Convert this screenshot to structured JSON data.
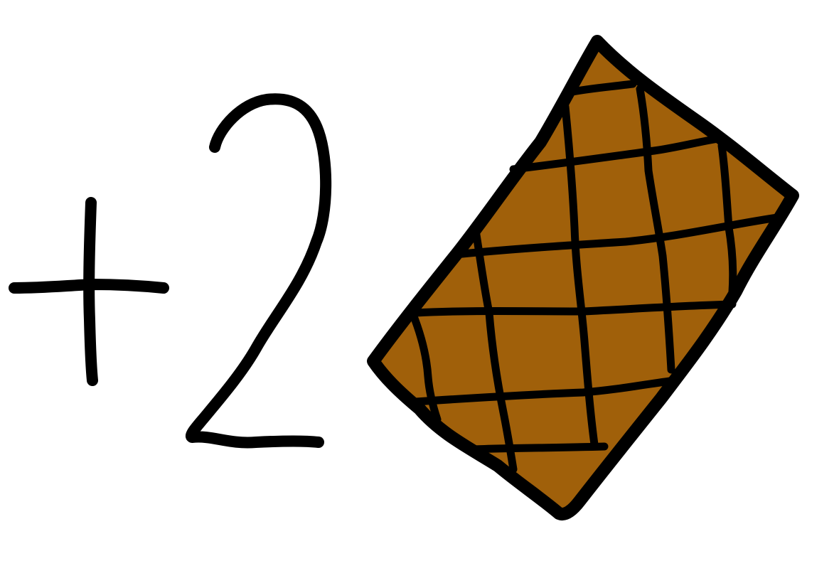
{
  "sign_text": "+",
  "amount_text": "2",
  "item": {
    "icon": "wafer-cookie-icon"
  },
  "colors": {
    "background": "#ffffff",
    "ink": "#000000",
    "wafer_fill": "#a0600a"
  }
}
